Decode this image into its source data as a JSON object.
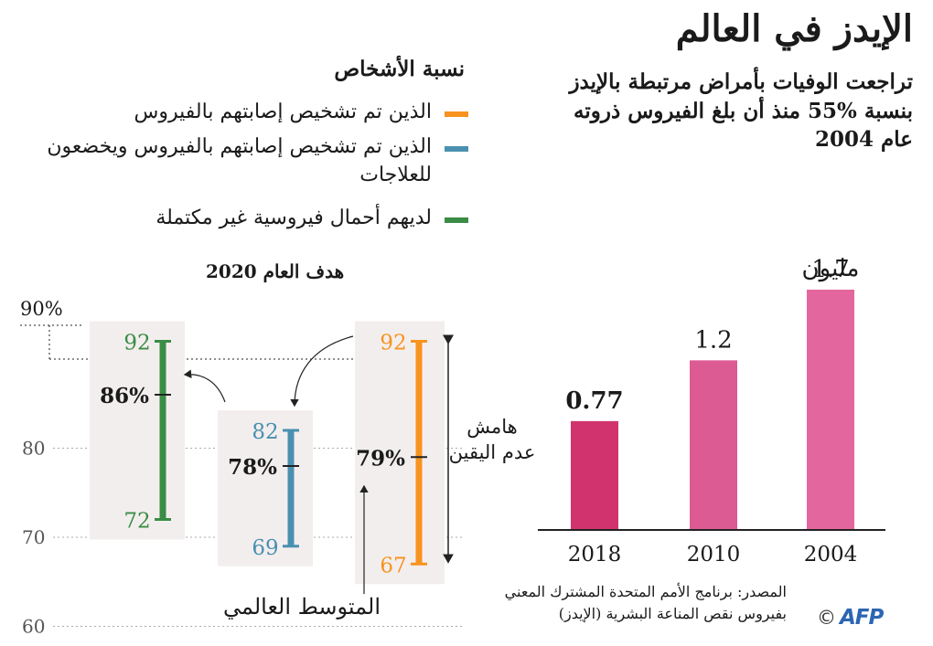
{
  "title": "الإيدز في العالم",
  "subtitle": "تراجعت الوفيات بأمراض مرتبطة بالإيدز بنسبة %55 منذ أن بلغ الفيروس ذروته عام 2004",
  "legend": {
    "heading": "نسبة الأشخاص",
    "items": [
      {
        "label": "الذين تم تشخيص إصابتهم بالفيروس",
        "color": "#f7931e"
      },
      {
        "label": "الذين تم تشخيص إصابتهم بالفيروس ويخضعون للعلاجات",
        "color": "#4a90b0"
      },
      {
        "label": "لديهم أحمال فيروسية غير مكتملة",
        "color": "#3a8d45"
      }
    ]
  },
  "colors": {
    "bar_2018": "#d0336e",
    "bar_2010": "#dd5b93",
    "bar_2004": "#e3679e",
    "band": "#f3eeee"
  },
  "chart_data": [
    {
      "type": "bar",
      "categories": [
        "2018",
        "2010",
        "2004"
      ],
      "values": [
        0.77,
        1.2,
        1.7
      ],
      "value_labels": [
        "0.77",
        "1.2",
        "1.7"
      ],
      "unit_label": "مليون"
    },
    {
      "type": "range",
      "ylim": [
        60,
        93
      ],
      "yticks": [
        60,
        70,
        80
      ],
      "target": {
        "label": "هدف العام 2020",
        "value": 90,
        "value_label": "90%"
      },
      "series": [
        {
          "name": "الذين تم تشخيص إصابتهم بالفيروس",
          "color": "#f7931e",
          "low": 67,
          "mid": 79,
          "high": 92,
          "mid_label": "79%"
        },
        {
          "name": "الذين تم تشخيص إصابتهم بالفيروس ويخضعون للعلاجات",
          "color": "#4a90b0",
          "low": 69,
          "mid": 78,
          "high": 82,
          "mid_label": "78%"
        },
        {
          "name": "لديهم أحمال فيروسية غير مكتملة",
          "color": "#3a8d45",
          "low": 72,
          "mid": 86,
          "high": 92,
          "mid_label": "86%"
        }
      ],
      "annotations": {
        "uncertainty": "هامش عدم اليقين",
        "global_average": "المتوسط العالمي"
      }
    }
  ],
  "source": {
    "text": "المصدر: برنامج الأمم المتحدة المشترك المعني بفيروس نقص المناعة البشرية (الإيدز)",
    "agency": "AFP",
    "copyright": "©"
  }
}
